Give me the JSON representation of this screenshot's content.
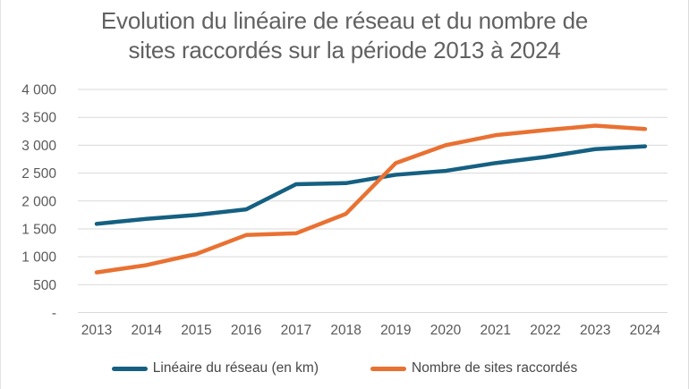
{
  "title": {
    "line1": "Evolution du linéaire de réseau et du nombre de",
    "line2": "sites raccordés sur la période 2013 à 2024"
  },
  "colors": {
    "series_lineaire": "#156082",
    "series_sites": "#E97132",
    "gridline": "#d9d9d9",
    "axis_text": "#595959",
    "title_text": "#616161",
    "legend_text": "#474747"
  },
  "chart_data": {
    "type": "line",
    "title": "Evolution du linéaire de réseau et du nombre de sites raccordés sur la période 2013 à 2024",
    "categories": [
      "2013",
      "2014",
      "2015",
      "2016",
      "2017",
      "2018",
      "2019",
      "2020",
      "2021",
      "2022",
      "2023",
      "2024"
    ],
    "series": [
      {
        "name": "Linéaire du réseau (en km)",
        "color": "#156082",
        "values": [
          1590,
          1680,
          1750,
          1850,
          2300,
          2320,
          2470,
          2540,
          2680,
          2790,
          2930,
          2980
        ]
      },
      {
        "name": "Nombre de sites raccordés",
        "color": "#E97132",
        "values": [
          720,
          850,
          1050,
          1390,
          1420,
          1770,
          2680,
          3000,
          3180,
          3270,
          3350,
          3290
        ]
      }
    ],
    "ylim": [
      0,
      4000
    ],
    "ytick_step": 500,
    "ytick_labels_bottom_up": [
      "-",
      "500",
      "1 000",
      "1 500",
      "2 000",
      "2 500",
      "3 000",
      "3 500",
      "4 000"
    ],
    "grid": "horizontal",
    "legend_position": "bottom"
  }
}
